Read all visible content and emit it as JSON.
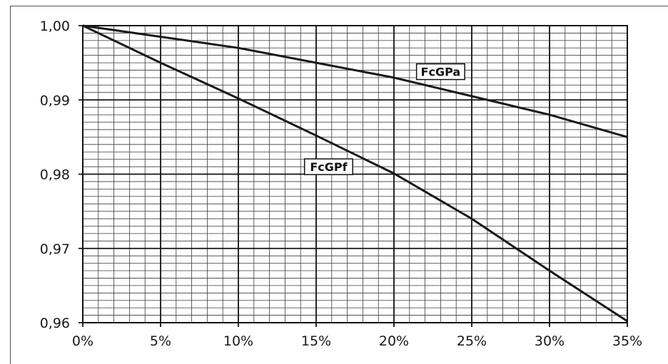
{
  "chart_data": {
    "type": "line",
    "title": "",
    "xlabel": "",
    "ylabel": "",
    "xlim": [
      0,
      35
    ],
    "ylim": [
      0.96,
      1.0
    ],
    "x_ticks": [
      0,
      5,
      10,
      15,
      20,
      25,
      30,
      35
    ],
    "x_tick_labels": [
      "0%",
      "5%",
      "10%",
      "15%",
      "20%",
      "25%",
      "30%",
      "35%"
    ],
    "y_ticks": [
      0.96,
      0.97,
      0.98,
      0.99,
      1.0
    ],
    "y_tick_labels": [
      "0,96",
      "0,97",
      "0,98",
      "0,99",
      "1,00"
    ],
    "grid": true,
    "minor_grid": {
      "x_step": 1,
      "y_step": 0.001
    },
    "series": [
      {
        "name": "FcGPa",
        "x": [
          0,
          5,
          10,
          15,
          20,
          25,
          30,
          35
        ],
        "y": [
          1.0,
          0.9985,
          0.997,
          0.995,
          0.993,
          0.9905,
          0.988,
          0.985
        ],
        "label_at": [
          23,
          0.9938
        ]
      },
      {
        "name": "FcGPf",
        "x": [
          0,
          5,
          10,
          15,
          20,
          25,
          30,
          35
        ],
        "y": [
          1.0,
          0.995,
          0.9902,
          0.9852,
          0.9801,
          0.974,
          0.967,
          0.9602
        ],
        "label_at": [
          15.8,
          0.981
        ]
      }
    ],
    "line_color": "#1a1a1a"
  }
}
